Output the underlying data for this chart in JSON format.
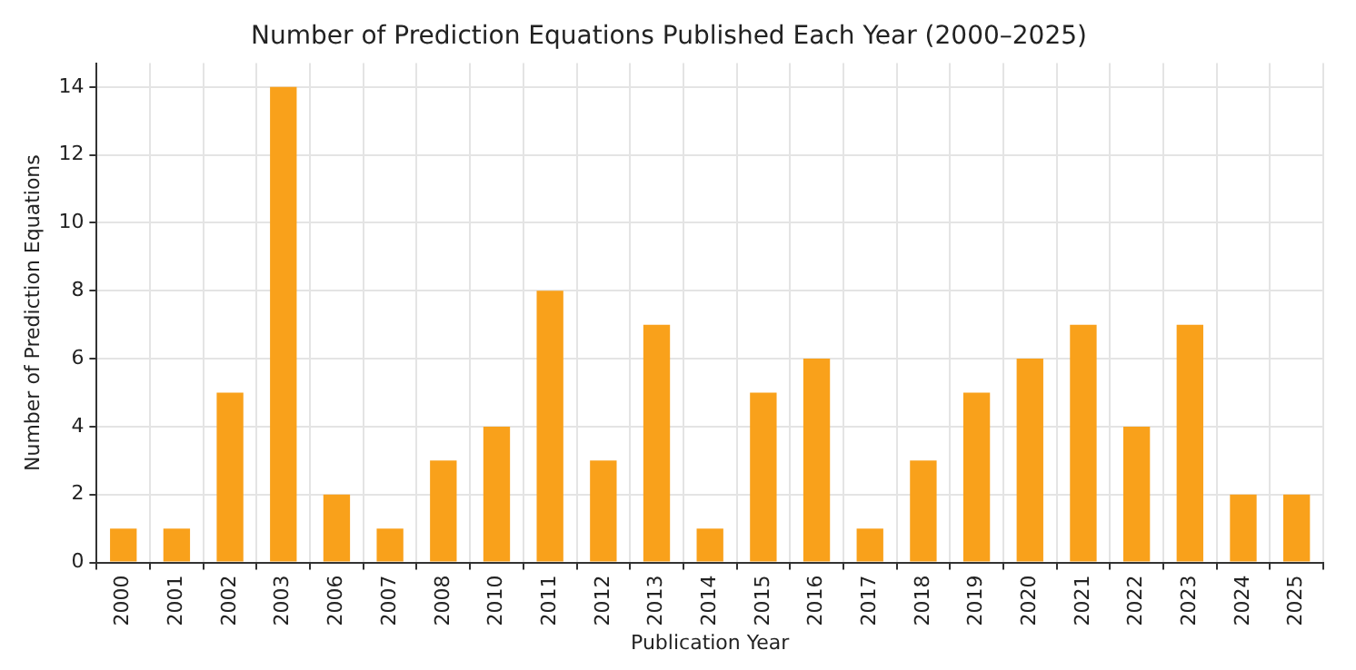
{
  "chart_data": {
    "type": "bar",
    "title": "Number of Prediction Equations Published Each Year (2000–2025)",
    "xlabel": "Publication Year",
    "ylabel": "Number of Prediction Equations",
    "categories": [
      "2000",
      "2001",
      "2002",
      "2003",
      "2006",
      "2007",
      "2008",
      "2010",
      "2011",
      "2012",
      "2013",
      "2014",
      "2015",
      "2016",
      "2017",
      "2018",
      "2019",
      "2020",
      "2021",
      "2022",
      "2023",
      "2024",
      "2025"
    ],
    "values": [
      1,
      1,
      5,
      14,
      2,
      1,
      3,
      4,
      8,
      3,
      7,
      1,
      5,
      6,
      1,
      3,
      5,
      6,
      7,
      4,
      7,
      2,
      2
    ],
    "color": "#f9a11b",
    "ylim": [
      0,
      14.7
    ],
    "yticks": [
      0,
      2,
      4,
      6,
      8,
      10,
      12,
      14
    ],
    "grid": true,
    "legend": false
  }
}
